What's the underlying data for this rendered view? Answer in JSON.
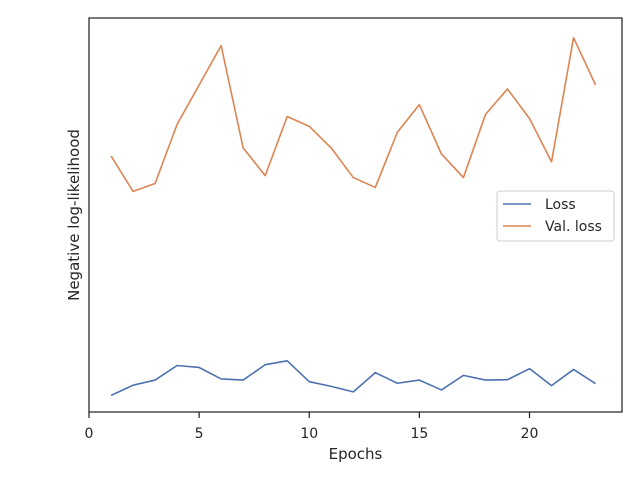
{
  "chart_data": {
    "type": "line",
    "xlabel": "Epochs",
    "ylabel": "Negative log-likelihood",
    "xlim": [
      0,
      24.2
    ],
    "ylim": [
      0,
      100
    ],
    "x_ticks": [
      0,
      5,
      10,
      15,
      20
    ],
    "y_ticks_visible": false,
    "grid": false,
    "legend_position": "center-right",
    "x": [
      1,
      2,
      3,
      4,
      5,
      6,
      7,
      8,
      9,
      10,
      11,
      12,
      13,
      14,
      15,
      16,
      17,
      18,
      19,
      20,
      21,
      22,
      23
    ],
    "series": [
      {
        "name": "Loss",
        "color": "#4c72b0",
        "values": [
          4.2,
          6.8,
          8.1,
          11.8,
          11.3,
          8.4,
          8.1,
          12.0,
          13.0,
          7.7,
          6.5,
          5.1,
          10.0,
          7.3,
          8.1,
          5.6,
          9.3,
          8.1,
          8.2,
          11.0,
          6.7,
          10.8,
          7.2
        ]
      },
      {
        "name": "Val. loss",
        "color": "#dd8452",
        "values": [
          65,
          56,
          58,
          73,
          83,
          93,
          67,
          60,
          75,
          72.5,
          67,
          59.5,
          57,
          71,
          78,
          65.5,
          59.5,
          75.5,
          82,
          74.5,
          63.5,
          95,
          83
        ]
      }
    ]
  }
}
